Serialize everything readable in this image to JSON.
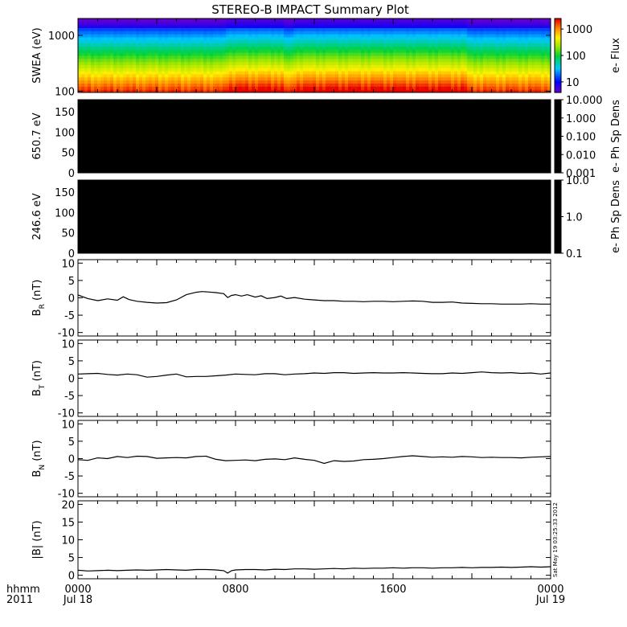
{
  "title": "STEREO-B IMPACT Summary Plot",
  "timestamp": "Sat May 19 03:25:33 2012",
  "time_axis": {
    "corner_label": "hhmm",
    "corner_year": "2011",
    "ticks": [
      {
        "hours": 0,
        "label": "0000",
        "date": "Jul 18"
      },
      {
        "hours": 8,
        "label": "0800",
        "date": ""
      },
      {
        "hours": 16,
        "label": "1600",
        "date": ""
      },
      {
        "hours": 24,
        "label": "0000",
        "date": "Jul 19"
      }
    ]
  },
  "chart_data": [
    {
      "type": "heatmap",
      "panel": "swea",
      "ylabel": "SWEA (eV)",
      "ylim": [
        95,
        2000
      ],
      "yscale": "log",
      "yticks": [
        {
          "v": 100,
          "label": "100"
        },
        {
          "v": 1000,
          "label": "1000"
        }
      ],
      "xlim": [
        0,
        24
      ],
      "colorbar": {
        "label": "e- Flux",
        "scale": "log",
        "range": [
          4,
          2500
        ],
        "ticks": [
          {
            "v": 10,
            "label": "10"
          },
          {
            "v": 100,
            "label": "100"
          },
          {
            "v": 1000,
            "label": "1000"
          }
        ]
      },
      "enhanced_intervals": [
        [
          7.55,
          10.5
        ],
        [
          10.9,
          19.8
        ]
      ]
    },
    {
      "type": "heatmap",
      "panel": "pad650",
      "ylabel": "650.7 eV",
      "ylim": [
        0,
        180
      ],
      "yticks": [
        {
          "v": 0,
          "label": "0"
        },
        {
          "v": 50,
          "label": "50"
        },
        {
          "v": 100,
          "label": "100"
        },
        {
          "v": 150,
          "label": "150"
        }
      ],
      "xlim": [
        0,
        24
      ],
      "colorbar": {
        "label": "e- Ph Sp Dens",
        "scale": "log",
        "range": [
          0.001,
          10
        ],
        "ticks": [
          {
            "v": 10,
            "label": "10.000"
          },
          {
            "v": 1,
            "label": "1.000"
          },
          {
            "v": 0.1,
            "label": "0.100"
          },
          {
            "v": 0.01,
            "label": "0.010"
          },
          {
            "v": 0.001,
            "label": "0.001"
          }
        ]
      }
    },
    {
      "type": "heatmap",
      "panel": "pad246",
      "ylabel": "246.6 eV",
      "ylim": [
        0,
        180
      ],
      "yticks": [
        {
          "v": 0,
          "label": "0"
        },
        {
          "v": 50,
          "label": "50"
        },
        {
          "v": 100,
          "label": "100"
        },
        {
          "v": 150,
          "label": "150"
        }
      ],
      "xlim": [
        0,
        24
      ],
      "colorbar": {
        "label": "e- Ph Sp Dens",
        "scale": "log",
        "range": [
          0.1,
          10
        ],
        "ticks": [
          {
            "v": 10,
            "label": "10.0"
          },
          {
            "v": 1,
            "label": "1.0"
          },
          {
            "v": 0.1,
            "label": "0.1"
          }
        ]
      }
    },
    {
      "type": "line",
      "panel": "br",
      "ylabel": "B",
      "ylabel_sub": "R",
      "ylabel_unit": " (nT)",
      "ylim": [
        -11,
        11
      ],
      "yticks": [
        {
          "v": -10,
          "label": "-10"
        },
        {
          "v": -5,
          "label": "-5"
        },
        {
          "v": 0,
          "label": "0"
        },
        {
          "v": 5,
          "label": "5"
        },
        {
          "v": 10,
          "label": "10"
        }
      ],
      "x": [
        0,
        0.5,
        1,
        1.5,
        2,
        2.3,
        2.6,
        3,
        3.5,
        4,
        4.5,
        5,
        5.5,
        6,
        6.3,
        6.6,
        7,
        7.4,
        7.6,
        7.8,
        8,
        8.3,
        8.6,
        9,
        9.3,
        9.6,
        10,
        10.3,
        10.6,
        11,
        11.5,
        12,
        12.5,
        13,
        13.5,
        14,
        14.5,
        15,
        15.5,
        16,
        16.5,
        17,
        17.5,
        18,
        18.5,
        19,
        19.5,
        20,
        20.5,
        21,
        21.5,
        22,
        22.5,
        23,
        23.5,
        24
      ],
      "values": [
        0.8,
        -0.2,
        -0.8,
        -0.3,
        -0.7,
        0.3,
        -0.5,
        -1,
        -1.3,
        -1.5,
        -1.4,
        -0.6,
        0.9,
        1.6,
        1.8,
        1.7,
        1.5,
        1.2,
        0.1,
        0.7,
        0.9,
        0.5,
        0.9,
        0.2,
        0.6,
        -0.2,
        0.1,
        0.5,
        -0.2,
        0.1,
        -0.4,
        -0.6,
        -0.8,
        -0.8,
        -1,
        -1,
        -1.1,
        -1,
        -1,
        -1.1,
        -1,
        -0.9,
        -1,
        -1.3,
        -1.3,
        -1.2,
        -1.5,
        -1.6,
        -1.7,
        -1.7,
        -1.8,
        -1.8,
        -1.8,
        -1.7,
        -1.8,
        -1.8
      ]
    },
    {
      "type": "line",
      "panel": "bt",
      "ylabel": "B",
      "ylabel_sub": "T",
      "ylabel_unit": " (nT)",
      "ylim": [
        -11,
        11
      ],
      "yticks": [
        {
          "v": -10,
          "label": "-10"
        },
        {
          "v": -5,
          "label": "-5"
        },
        {
          "v": 0,
          "label": "0"
        },
        {
          "v": 5,
          "label": "5"
        },
        {
          "v": 10,
          "label": "10"
        }
      ],
      "x": [
        0,
        0.5,
        1,
        1.5,
        2,
        2.5,
        3,
        3.5,
        4,
        4.5,
        5,
        5.5,
        6,
        6.5,
        7,
        7.5,
        8,
        8.5,
        9,
        9.5,
        10,
        10.5,
        11,
        11.5,
        12,
        12.5,
        13,
        13.5,
        14,
        14.5,
        15,
        15.5,
        16,
        16.5,
        17,
        17.5,
        18,
        18.5,
        19,
        19.5,
        20,
        20.5,
        21,
        21.5,
        22,
        22.5,
        23,
        23.5,
        24
      ],
      "values": [
        1.2,
        1.3,
        1.4,
        1.1,
        0.9,
        1.2,
        1.0,
        0.3,
        0.5,
        0.9,
        1.2,
        0.4,
        0.5,
        0.5,
        0.7,
        0.9,
        1.2,
        1.1,
        1.0,
        1.3,
        1.3,
        1.0,
        1.2,
        1.3,
        1.5,
        1.4,
        1.6,
        1.6,
        1.4,
        1.5,
        1.6,
        1.5,
        1.5,
        1.6,
        1.5,
        1.4,
        1.3,
        1.3,
        1.5,
        1.4,
        1.6,
        1.8,
        1.6,
        1.5,
        1.6,
        1.4,
        1.5,
        1.2,
        1.5
      ]
    },
    {
      "type": "line",
      "panel": "bn",
      "ylabel": "B",
      "ylabel_sub": "N",
      "ylabel_unit": " (nT)",
      "ylim": [
        -11,
        11
      ],
      "yticks": [
        {
          "v": -10,
          "label": "-10"
        },
        {
          "v": -5,
          "label": "-5"
        },
        {
          "v": 0,
          "label": "0"
        },
        {
          "v": 5,
          "label": "5"
        },
        {
          "v": 10,
          "label": "10"
        }
      ],
      "x": [
        0,
        0.5,
        1,
        1.5,
        2,
        2.5,
        3,
        3.5,
        4,
        4.5,
        5,
        5.5,
        6,
        6.5,
        7,
        7.5,
        8,
        8.5,
        9,
        9.5,
        10,
        10.5,
        11,
        11.5,
        12,
        12.5,
        13,
        13.5,
        14,
        14.5,
        15,
        15.5,
        16,
        16.5,
        17,
        17.5,
        18,
        18.5,
        19,
        19.5,
        20,
        20.5,
        21,
        21.5,
        22,
        22.5,
        23,
        23.5,
        24
      ],
      "values": [
        -0.3,
        -0.5,
        0.2,
        0.0,
        0.6,
        0.3,
        0.7,
        0.6,
        0.1,
        0.2,
        0.3,
        0.2,
        0.6,
        0.7,
        -0.2,
        -0.6,
        -0.5,
        -0.4,
        -0.6,
        -0.2,
        -0.1,
        -0.3,
        0.2,
        -0.2,
        -0.5,
        -1.4,
        -0.6,
        -0.8,
        -0.7,
        -0.3,
        -0.2,
        0.0,
        0.3,
        0.6,
        0.8,
        0.6,
        0.4,
        0.5,
        0.4,
        0.6,
        0.5,
        0.3,
        0.4,
        0.3,
        0.3,
        0.2,
        0.4,
        0.5,
        0.6
      ]
    },
    {
      "type": "line",
      "panel": "bmag",
      "ylabel": "|B| (nT)",
      "ylim": [
        -1,
        21
      ],
      "yticks": [
        {
          "v": 0,
          "label": "0"
        },
        {
          "v": 5,
          "label": "5"
        },
        {
          "v": 10,
          "label": "10"
        },
        {
          "v": 15,
          "label": "15"
        },
        {
          "v": 20,
          "label": "20"
        }
      ],
      "x": [
        0,
        0.5,
        1,
        1.5,
        2,
        2.5,
        3,
        3.5,
        4,
        4.5,
        5,
        5.5,
        6,
        6.5,
        7,
        7.4,
        7.6,
        7.8,
        8,
        8.5,
        9,
        9.5,
        10,
        10.5,
        11,
        11.5,
        12,
        12.5,
        13,
        13.5,
        14,
        14.5,
        15,
        15.5,
        16,
        16.5,
        17,
        17.5,
        18,
        18.5,
        19,
        19.5,
        20,
        20.5,
        21,
        21.5,
        22,
        22.5,
        23,
        23.5,
        24
      ],
      "values": [
        1.4,
        1.2,
        1.3,
        1.4,
        1.3,
        1.4,
        1.5,
        1.4,
        1.5,
        1.6,
        1.5,
        1.4,
        1.6,
        1.6,
        1.5,
        1.3,
        0.6,
        1.3,
        1.5,
        1.6,
        1.6,
        1.5,
        1.7,
        1.6,
        1.8,
        1.8,
        1.7,
        1.8,
        1.9,
        1.8,
        2.0,
        1.9,
        2.0,
        2.0,
        2.1,
        2.0,
        2.1,
        2.1,
        2.0,
        2.1,
        2.1,
        2.2,
        2.1,
        2.2,
        2.2,
        2.3,
        2.2,
        2.3,
        2.4,
        2.3,
        2.4
      ]
    }
  ]
}
